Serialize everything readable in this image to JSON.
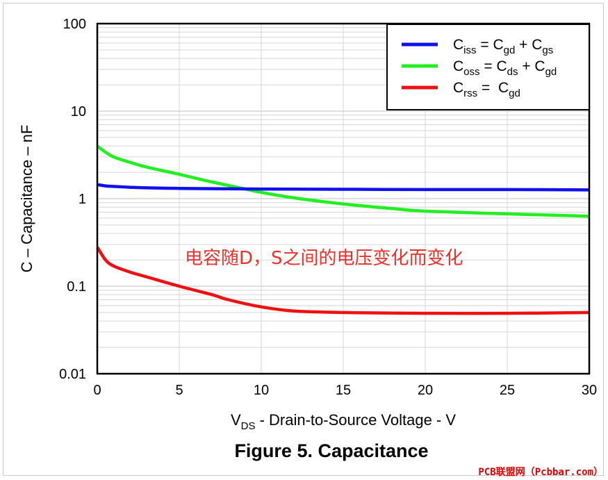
{
  "chart_data": {
    "type": "line",
    "title": "",
    "caption": "Figure 5. Capacitance",
    "xlabel": {
      "main": "V",
      "sub": "DS",
      "rest": " - Drain-to-Source Voltage - V"
    },
    "ylabel": "C – Capacitance – nF",
    "xlim": [
      0,
      30
    ],
    "ylim": [
      0.01,
      100
    ],
    "yscale": "log",
    "grid": true,
    "x_ticks": [
      "0",
      "5",
      "10",
      "15",
      "20",
      "25",
      "30"
    ],
    "y_ticks": [
      "0.01",
      "0.1",
      "1",
      "10",
      "100"
    ],
    "legend_position": "top-right",
    "annotation": "电容随D，S之间的电压变化而变化",
    "series": [
      {
        "name": "Ciss = Cgd + Cgs",
        "legend_parts": [
          {
            "t": "C",
            "s": false
          },
          {
            "t": "iss",
            "s": true
          },
          {
            "t": " = C",
            "s": false
          },
          {
            "t": "gd",
            "s": true
          },
          {
            "t": " + C",
            "s": false
          },
          {
            "t": "gs",
            "s": true
          }
        ],
        "color": "#1010f0",
        "x": [
          0,
          0.5,
          1,
          2,
          3,
          5,
          7,
          10,
          15,
          20,
          25,
          30
        ],
        "values": [
          1.45,
          1.4,
          1.38,
          1.35,
          1.33,
          1.31,
          1.3,
          1.29,
          1.28,
          1.27,
          1.27,
          1.26
        ]
      },
      {
        "name": "Coss = Cds + Cgd",
        "legend_parts": [
          {
            "t": "C",
            "s": false
          },
          {
            "t": "oss",
            "s": true
          },
          {
            "t": " = C",
            "s": false
          },
          {
            "t": "ds",
            "s": true
          },
          {
            "t": " + C",
            "s": false
          },
          {
            "t": "gd",
            "s": true
          }
        ],
        "color": "#22ee22",
        "x": [
          0,
          0.5,
          1,
          2,
          3,
          5,
          7,
          8.7,
          10,
          12,
          15,
          18,
          20,
          25,
          30
        ],
        "values": [
          4.0,
          3.4,
          3.0,
          2.6,
          2.3,
          1.9,
          1.55,
          1.33,
          1.18,
          1.02,
          0.87,
          0.77,
          0.72,
          0.67,
          0.63
        ]
      },
      {
        "name": "Crss = Cgd",
        "legend_parts": [
          {
            "t": "C",
            "s": false
          },
          {
            "t": "rss",
            "s": true
          },
          {
            "t": " =  C",
            "s": false
          },
          {
            "t": "gd",
            "s": true
          }
        ],
        "color": "#ee1111",
        "x": [
          0,
          0.5,
          1,
          2,
          3,
          5,
          7,
          8,
          10,
          12,
          15,
          20,
          25,
          30
        ],
        "values": [
          0.28,
          0.2,
          0.17,
          0.145,
          0.128,
          0.1,
          0.08,
          0.07,
          0.058,
          0.052,
          0.05,
          0.049,
          0.049,
          0.05
        ]
      }
    ]
  },
  "watermark": "PCB联盟网（Pcbbar.com）"
}
